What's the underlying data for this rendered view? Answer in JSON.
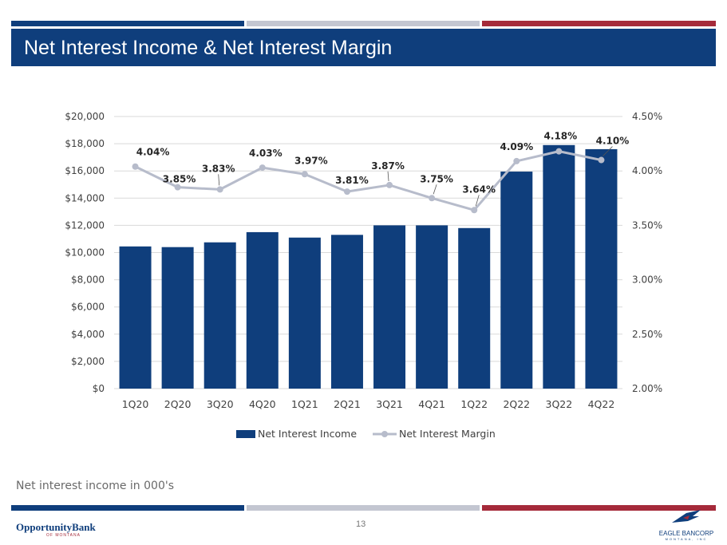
{
  "header": {
    "title": "Net Interest Income & Net Interest Margin"
  },
  "colors": {
    "navy": "#0f3e7c",
    "gray": "#c3c6d1",
    "red": "#a52a3a",
    "line": "#b7bccb"
  },
  "chart_data": {
    "type": "bar",
    "categories": [
      "1Q20",
      "2Q20",
      "3Q20",
      "4Q20",
      "1Q21",
      "2Q21",
      "3Q21",
      "4Q21",
      "1Q22",
      "2Q22",
      "3Q22",
      "4Q22"
    ],
    "series": [
      {
        "name": "Net Interest Income",
        "type": "bar",
        "axis": "left",
        "values": [
          10450,
          10400,
          10750,
          11500,
          11100,
          11300,
          12000,
          12000,
          11800,
          15950,
          17900,
          17600
        ]
      },
      {
        "name": "Net Interest Margin",
        "type": "line",
        "axis": "right",
        "values": [
          4.04,
          3.85,
          3.83,
          4.03,
          3.97,
          3.81,
          3.87,
          3.75,
          3.64,
          4.09,
          4.18,
          4.1
        ],
        "labels": [
          "4.04%",
          "3.85%",
          "3.83%",
          "4.03%",
          "3.97%",
          "3.81%",
          "3.87%",
          "3.75%",
          "3.64%",
          "4.09%",
          "4.18%",
          "4.10%"
        ]
      }
    ],
    "y_left": {
      "min": 0,
      "max": 20000,
      "ticks": [
        "$0",
        "$2,000",
        "$4,000",
        "$6,000",
        "$8,000",
        "$10,000",
        "$12,000",
        "$14,000",
        "$16,000",
        "$18,000",
        "$20,000"
      ]
    },
    "y_right": {
      "min": 2.0,
      "max": 4.5,
      "ticks": [
        "2.00%",
        "2.50%",
        "3.00%",
        "3.50%",
        "4.00%",
        "4.50%"
      ]
    },
    "legend": [
      "Net Interest Income",
      "Net Interest Margin"
    ],
    "legend_position": "bottom",
    "grid": true
  },
  "footnote": "Net interest income in 000's",
  "page_number": "13",
  "logos": {
    "left": {
      "name": "OpportunityBank",
      "sub": "OF MONTANA"
    },
    "right": {
      "name": "EAGLE BANCORP",
      "sub": "MONTANA, INC"
    }
  }
}
